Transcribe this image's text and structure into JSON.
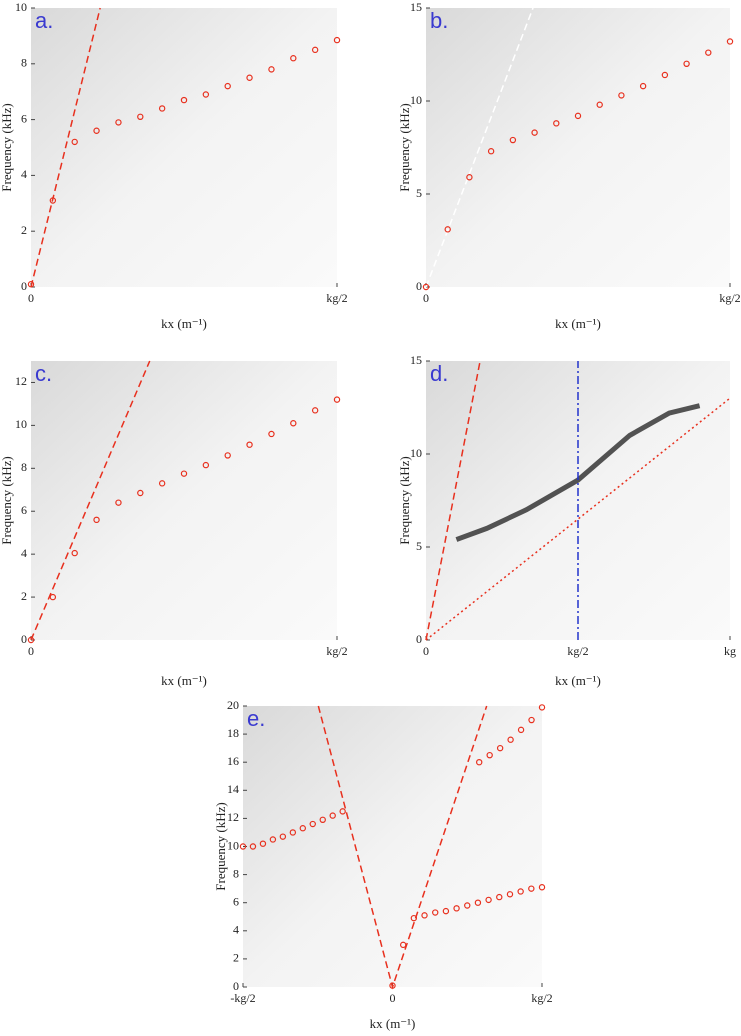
{
  "chart_data": [
    {
      "type": "scatter",
      "panel_label": "a.",
      "xlabel": "kx (m⁻¹)",
      "ylabel": "Frequency (kHz)",
      "xlim": [
        0,
        0.5
      ],
      "ylim": [
        0,
        10
      ],
      "xticks": [
        0,
        {
          "value": 0.5,
          "label": "kg/2"
        }
      ],
      "yticks": [
        0,
        2,
        4,
        6,
        8,
        10
      ],
      "series": [
        {
          "style": "dashed",
          "color": "#e8301e",
          "x": [
            0,
            0.113
          ],
          "values": [
            0,
            10
          ]
        },
        {
          "style": "circles",
          "color": "#e8301e",
          "x": [
            0,
            0.0357,
            0.0714,
            0.1071,
            0.1429,
            0.1786,
            0.2143,
            0.25,
            0.2857,
            0.3214,
            0.3571,
            0.3929,
            0.4286,
            0.4643,
            0.5
          ],
          "values": [
            0.1,
            3.1,
            5.2,
            5.6,
            5.9,
            6.1,
            6.4,
            6.7,
            6.9,
            7.2,
            7.5,
            7.8,
            8.2,
            8.5,
            8.85
          ]
        }
      ]
    },
    {
      "type": "scatter",
      "panel_label": "b.",
      "xlabel": "kx (m⁻¹)",
      "ylabel": "Frequency (kHz)",
      "xlim": [
        0,
        0.5
      ],
      "ylim": [
        0,
        15
      ],
      "xticks": [
        0,
        {
          "value": 0.5,
          "label": "kg/2"
        }
      ],
      "yticks": [
        0,
        5,
        10,
        15
      ],
      "series": [
        {
          "style": "dashed",
          "color": "#ffffff",
          "x": [
            0,
            0.176
          ],
          "values": [
            0,
            15
          ]
        },
        {
          "style": "circles",
          "color": "#e8301e",
          "x": [
            0,
            0.0357,
            0.0714,
            0.1071,
            0.1429,
            0.1786,
            0.2143,
            0.25,
            0.2857,
            0.3214,
            0.3571,
            0.3929,
            0.4286,
            0.4643,
            0.5
          ],
          "values": [
            0,
            3.1,
            5.9,
            7.3,
            7.9,
            8.3,
            8.8,
            9.2,
            9.8,
            10.3,
            10.8,
            11.4,
            12.0,
            12.6,
            13.2
          ]
        }
      ]
    },
    {
      "type": "scatter",
      "panel_label": "c.",
      "xlabel": "kx (m⁻¹)",
      "ylabel": "Frequency (kHz)",
      "xlim": [
        0,
        0.5
      ],
      "ylim": [
        0,
        13
      ],
      "xticks": [
        0,
        {
          "value": 0.5,
          "label": "kg/2"
        }
      ],
      "yticks": [
        0,
        2,
        4,
        6,
        8,
        10,
        12
      ],
      "series": [
        {
          "style": "dashed",
          "color": "#e8301e",
          "x": [
            0,
            0.194
          ],
          "values": [
            0,
            13
          ]
        },
        {
          "style": "circles",
          "color": "#e8301e",
          "x": [
            0,
            0.0357,
            0.0714,
            0.1071,
            0.1429,
            0.1786,
            0.2143,
            0.25,
            0.2857,
            0.3214,
            0.3571,
            0.3929,
            0.4286,
            0.4643,
            0.5
          ],
          "values": [
            0,
            2.0,
            4.05,
            5.6,
            6.4,
            6.85,
            7.3,
            7.75,
            8.15,
            8.6,
            9.1,
            9.6,
            10.1,
            10.7,
            11.2
          ]
        }
      ]
    },
    {
      "type": "scatter",
      "panel_label": "d.",
      "xlabel": "kx (m⁻¹)",
      "ylabel": "Frequency (kHz)",
      "xlim": [
        0,
        1
      ],
      "ylim": [
        0,
        15
      ],
      "xticks": [
        0,
        {
          "value": 0.5,
          "label": "kg/2"
        },
        {
          "value": 1,
          "label": "kg"
        }
      ],
      "yticks": [
        0,
        5,
        10,
        15
      ],
      "series": [
        {
          "style": "solid",
          "color": "#2a2a2a",
          "x": [
            0.1,
            0.2,
            0.33,
            0.5,
            0.67,
            0.8,
            0.9
          ],
          "values": [
            5.4,
            6.0,
            7.0,
            8.6,
            11.0,
            12.2,
            12.6
          ]
        },
        {
          "style": "dashed",
          "color": "#e8301e",
          "x": [
            0,
            0.178
          ],
          "values": [
            0,
            15
          ]
        },
        {
          "style": "dotted",
          "color": "#e8301e",
          "x": [
            0,
            1
          ],
          "values": [
            0,
            13
          ]
        },
        {
          "style": "dashdot",
          "color": "#2233cc",
          "x": [
            0.5,
            0.5
          ],
          "values": [
            0,
            15
          ]
        }
      ]
    },
    {
      "type": "scatter",
      "panel_label": "e.",
      "xlabel": "kx (m⁻¹)",
      "ylabel": "Frequency (kHz)",
      "xlim": [
        -0.5,
        0.5
      ],
      "ylim": [
        0,
        20
      ],
      "xticks": [
        {
          "value": -0.5,
          "label": "-kg/2"
        },
        0,
        {
          "value": 0.5,
          "label": "kg/2"
        }
      ],
      "yticks": [
        0,
        2,
        4,
        6,
        8,
        10,
        12,
        14,
        16,
        18,
        20
      ],
      "series": [
        {
          "style": "dashed",
          "color": "#e8301e",
          "x": [
            -0.248,
            0,
            0.315
          ],
          "values": [
            20,
            0,
            20
          ]
        },
        {
          "style": "circles",
          "color": "#e8301e",
          "x": [
            -0.5,
            -0.4667,
            -0.4333,
            -0.4,
            -0.3667,
            -0.3333,
            -0.3,
            -0.2667,
            -0.2333,
            -0.2,
            -0.1667
          ],
          "values": [
            10.0,
            10.0,
            10.2,
            10.5,
            10.7,
            11.0,
            11.3,
            11.6,
            11.9,
            12.2,
            12.5
          ]
        },
        {
          "style": "circles",
          "color": "#e8301e",
          "x": [
            0,
            0.0357,
            0.0714,
            0.1071,
            0.1429,
            0.1786,
            0.2143,
            0.25,
            0.2857,
            0.3214,
            0.3571,
            0.3929,
            0.4286,
            0.4643,
            0.5
          ],
          "values": [
            0.1,
            3.0,
            4.9,
            5.1,
            5.3,
            5.4,
            5.6,
            5.8,
            6.0,
            6.2,
            6.4,
            6.6,
            6.8,
            7.0,
            7.1
          ]
        },
        {
          "style": "circles",
          "color": "#e8301e",
          "x": [
            0.29,
            0.325,
            0.36,
            0.395,
            0.43,
            0.465,
            0.5
          ],
          "values": [
            16.0,
            16.5,
            17.0,
            17.6,
            18.3,
            19.0,
            19.9
          ]
        }
      ]
    }
  ]
}
